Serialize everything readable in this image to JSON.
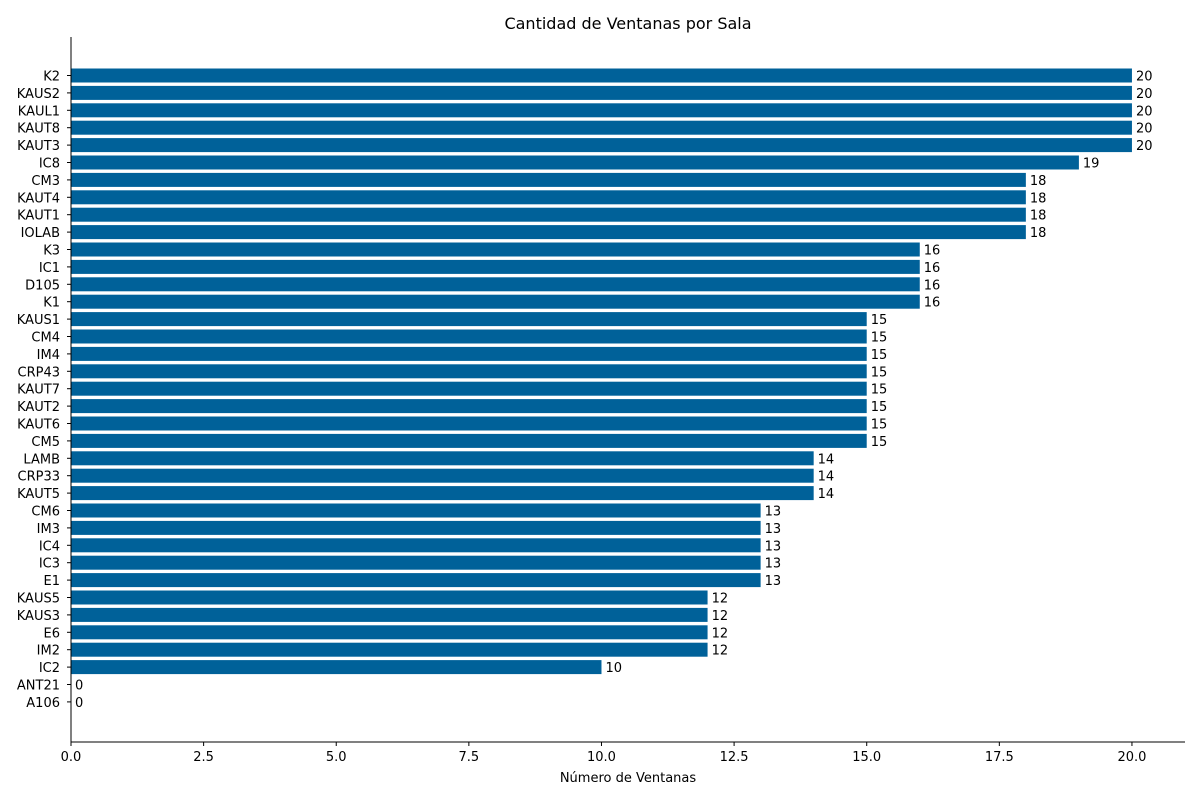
{
  "chart_data": {
    "type": "bar",
    "orientation": "horizontal",
    "title": "Cantidad de Ventanas por Sala",
    "xlabel": "Número de Ventanas",
    "ylabel": "",
    "xlim": [
      0,
      21
    ],
    "xticks": [
      "0.0",
      "2.5",
      "5.0",
      "7.5",
      "10.0",
      "12.5",
      "15.0",
      "17.5",
      "20.0"
    ],
    "grid": false,
    "legend": "none",
    "bar_color": "#006199",
    "categories": [
      "K2",
      "KAUS2",
      "KAUL1",
      "KAUT8",
      "KAUT3",
      "IC8",
      "CM3",
      "KAUT4",
      "KAUT1",
      "IOLAB",
      "K3",
      "IC1",
      "D105",
      "K1",
      "KAUS1",
      "CM4",
      "IM4",
      "CRP43",
      "KAUT7",
      "KAUT2",
      "KAUT6",
      "CM5",
      "LAMB",
      "CRP33",
      "KAUT5",
      "CM6",
      "IM3",
      "IC4",
      "IC3",
      "E1",
      "KAUS5",
      "KAUS3",
      "E6",
      "IM2",
      "IC2",
      "ANT21",
      "A106"
    ],
    "values": [
      20,
      20,
      20,
      20,
      20,
      19,
      18,
      18,
      18,
      18,
      16,
      16,
      16,
      16,
      15,
      15,
      15,
      15,
      15,
      15,
      15,
      15,
      14,
      14,
      14,
      13,
      13,
      13,
      13,
      13,
      12,
      12,
      12,
      12,
      10,
      0,
      0
    ],
    "data_labels": [
      "20",
      "20",
      "20",
      "20",
      "20",
      "19",
      "18",
      "18",
      "18",
      "18",
      "16",
      "16",
      "16",
      "16",
      "15",
      "15",
      "15",
      "15",
      "15",
      "15",
      "15",
      "15",
      "14",
      "14",
      "14",
      "13",
      "13",
      "13",
      "13",
      "13",
      "12",
      "12",
      "12",
      "12",
      "10",
      "0",
      "0"
    ]
  }
}
